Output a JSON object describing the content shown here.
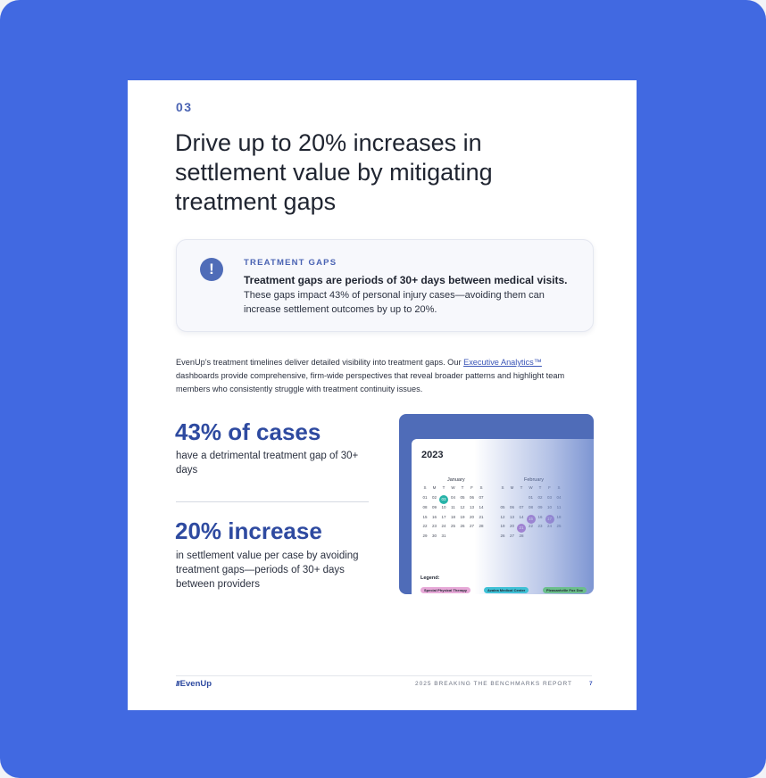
{
  "section_number": "03",
  "title": "Drive up to 20% increases in settlement value by mitigating treatment gaps",
  "callout": {
    "icon": "exclamation-icon",
    "label": "TREATMENT GAPS",
    "bold": "Treatment gaps are periods of 30+ days between medical visits.",
    "body": "These gaps impact 43% of personal injury cases—avoiding them can increase settlement outcomes by up to 20%."
  },
  "intro": {
    "before_link": "EvenUp’s treatment timelines deliver detailed visibility into treatment gaps. Our ",
    "link": "Executive Analytics™",
    "after_link": " dashboards provide comprehensive, firm-wide perspectives that reveal broader patterns and highlight team members who consistently struggle with treatment continuity issues."
  },
  "stats": [
    {
      "value": "43% of cases",
      "description": "have a detrimental treatment gap of 30+ days"
    },
    {
      "value": "20% increase",
      "description": "in settlement value per case by avoiding treatment gaps—periods of 30+ days between providers"
    }
  ],
  "calendar": {
    "year": "2023",
    "months": [
      {
        "name": "January",
        "weekdays": [
          "S",
          "M",
          "T",
          "W",
          "T",
          "F",
          "S"
        ],
        "days": [
          "01",
          "02",
          "03",
          "04",
          "05",
          "06",
          "07",
          "08",
          "09",
          "10",
          "11",
          "12",
          "13",
          "14",
          "15",
          "16",
          "17",
          "18",
          "19",
          "20",
          "21",
          "22",
          "23",
          "24",
          "25",
          "26",
          "27",
          "28",
          "29",
          "30",
          "31"
        ],
        "highlight_teal": [
          "03"
        ]
      },
      {
        "name": "February",
        "weekdays": [
          "S",
          "M",
          "T",
          "W",
          "T",
          "F",
          "S"
        ],
        "days": [
          "01",
          "02",
          "03",
          "04",
          "05",
          "06",
          "07",
          "08",
          "09",
          "10",
          "11",
          "12",
          "13",
          "14",
          "15",
          "16",
          "17",
          "18",
          "19",
          "20",
          "21",
          "22",
          "23",
          "24",
          "25",
          "26",
          "27",
          "28"
        ],
        "highlight_purple": [
          "15",
          "17",
          "21"
        ]
      }
    ],
    "legend_label": "Legend:",
    "legend": [
      {
        "name": "Special Physical Therapy",
        "color": "#e7a9d8"
      },
      {
        "name": "Azalea Medical Center",
        "color": "#3fc1d6"
      },
      {
        "name": "Pleasantville Fox Doc",
        "color": "#6bbf8c"
      }
    ]
  },
  "footer": {
    "logo": "EvenUp",
    "report": "2025 BREAKING THE BENCHMARKS REPORT",
    "page": "7"
  }
}
